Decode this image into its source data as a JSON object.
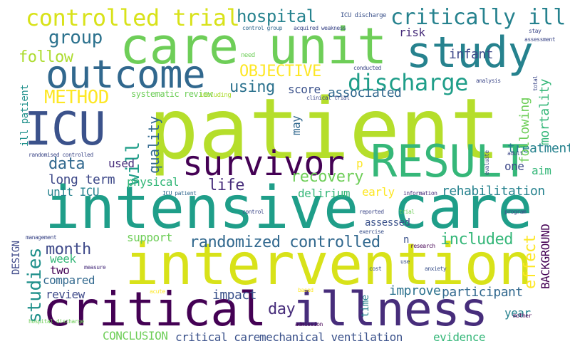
{
  "words": [
    {
      "text": "patient",
      "color": "#b5de2b"
    },
    {
      "text": "intensive care",
      "color": "#1f9e89"
    },
    {
      "text": "intervention",
      "color": "#d8e219"
    },
    {
      "text": "critical",
      "color": "#440154"
    },
    {
      "text": "illness",
      "color": "#472d7b"
    },
    {
      "text": "care unit",
      "color": "#6ece58"
    },
    {
      "text": "study",
      "color": "#26828e"
    },
    {
      "text": "outcome",
      "color": "#31688e"
    },
    {
      "text": "ICU",
      "color": "#3b528b"
    },
    {
      "text": "RESULT",
      "color": "#35b779"
    },
    {
      "text": "survivor",
      "color": "#440154"
    },
    {
      "text": "controlled trial",
      "color": "#d8e219"
    },
    {
      "text": "critically ill",
      "color": "#26828e"
    },
    {
      "text": "discharge",
      "color": "#1f9e89"
    },
    {
      "text": "hospital",
      "color": "#26828e"
    },
    {
      "text": "group",
      "color": "#2c728e"
    },
    {
      "text": "METHOD",
      "color": "#fde725"
    },
    {
      "text": "OBJECTIVE",
      "color": "#fde725"
    },
    {
      "text": "follow",
      "color": "#addc30"
    },
    {
      "text": "using",
      "color": "#2c728e"
    },
    {
      "text": "score",
      "color": "#3b528b"
    },
    {
      "text": "associated",
      "color": "#31688e"
    },
    {
      "text": "risk",
      "color": "#472d7b"
    },
    {
      "text": "infant",
      "color": "#3e4989"
    },
    {
      "text": "treatment",
      "color": "#26828e"
    },
    {
      "text": "mortality",
      "color": "#35b779"
    },
    {
      "text": "following",
      "color": "#6ece58"
    },
    {
      "text": "will",
      "color": "#1f9e89"
    },
    {
      "text": "quality",
      "color": "#31688e"
    },
    {
      "text": "data",
      "color": "#31688e"
    },
    {
      "text": "long term",
      "color": "#3e4989"
    },
    {
      "text": "recovery",
      "color": "#6ece58"
    },
    {
      "text": "life",
      "color": "#472d7b"
    },
    {
      "text": "physical",
      "color": "#35b779"
    },
    {
      "text": "delirium",
      "color": "#35b779"
    },
    {
      "text": "rehabilitation",
      "color": "#26828e"
    },
    {
      "text": "early",
      "color": "#fde725"
    },
    {
      "text": "unit ICU",
      "color": "#26828e"
    },
    {
      "text": "ill patient",
      "color": "#21918c"
    },
    {
      "text": "may",
      "color": "#31688e"
    },
    {
      "text": "used",
      "color": "#472d7b"
    },
    {
      "text": "p",
      "color": "#fde725"
    },
    {
      "text": "one",
      "color": "#3e4989"
    },
    {
      "text": "aim",
      "color": "#35b779"
    },
    {
      "text": "month",
      "color": "#3e4989"
    },
    {
      "text": "randomized controlled",
      "color": "#31688e"
    },
    {
      "text": "included",
      "color": "#35b779"
    },
    {
      "text": "support",
      "color": "#6ece58"
    },
    {
      "text": "week",
      "color": "#35b779"
    },
    {
      "text": "two",
      "color": "#440154"
    },
    {
      "text": "compared",
      "color": "#31688e"
    },
    {
      "text": "assessed",
      "color": "#3b528b"
    },
    {
      "text": "effect",
      "color": "#fde725"
    },
    {
      "text": "BACKGROUND",
      "color": "#440154"
    },
    {
      "text": "studies",
      "color": "#21918c"
    },
    {
      "text": "review",
      "color": "#3e4989"
    },
    {
      "text": "impact",
      "color": "#3b528b"
    },
    {
      "text": "improve",
      "color": "#2c728e"
    },
    {
      "text": "participant",
      "color": "#31688e"
    },
    {
      "text": "day",
      "color": "#472d7b"
    },
    {
      "text": "year",
      "color": "#26828e"
    },
    {
      "text": "CONCLUSION",
      "color": "#6ece58"
    },
    {
      "text": "critical care",
      "color": "#3b528b"
    },
    {
      "text": "mechanical ventilation",
      "color": "#3b528b"
    },
    {
      "text": "evidence",
      "color": "#35b779"
    },
    {
      "text": "DESIGN",
      "color": "#3e4989"
    },
    {
      "text": "n",
      "color": "#3b528b"
    },
    {
      "text": "time",
      "color": "#26828e"
    },
    {
      "text": "systematic review",
      "color": "#6ece58"
    },
    {
      "text": "ICU discharge",
      "color": "#3b528b"
    },
    {
      "text": "control group",
      "color": "#31688e"
    },
    {
      "text": "acquired weakness",
      "color": "#3e4989"
    },
    {
      "text": "need",
      "color": "#6ece58"
    },
    {
      "text": "conducted",
      "color": "#3e4989"
    },
    {
      "text": "clinical trial",
      "color": "#3e4989"
    },
    {
      "text": "including",
      "color": "#addc30"
    },
    {
      "text": "randomised controlled",
      "color": "#3e4989"
    },
    {
      "text": "ICU patient",
      "color": "#31688e"
    },
    {
      "text": "information",
      "color": "#472d7b"
    },
    {
      "text": "control",
      "color": "#3e4989"
    },
    {
      "text": "reported",
      "color": "#3e4989"
    },
    {
      "text": "trial",
      "color": "#6ece58"
    },
    {
      "text": "program",
      "color": "#3e4989"
    },
    {
      "text": "exercise",
      "color": "#3b528b"
    },
    {
      "text": "research",
      "color": "#440154"
    },
    {
      "text": "management",
      "color": "#3e4989"
    },
    {
      "text": "measure",
      "color": "#472d7b"
    },
    {
      "text": "use",
      "color": "#3b528b"
    },
    {
      "text": "anxiety",
      "color": "#3b528b"
    },
    {
      "text": "cost",
      "color": "#3b528b"
    },
    {
      "text": "acute",
      "color": "#fde725"
    },
    {
      "text": "based",
      "color": "#fde725"
    },
    {
      "text": "admission",
      "color": "#440154"
    },
    {
      "text": "mother",
      "color": "#440154"
    },
    {
      "text": "hospital discharge",
      "color": "#6ece58"
    },
    {
      "text": "stay",
      "color": "#3e4989"
    },
    {
      "text": "assessment",
      "color": "#3e4989"
    },
    {
      "text": "analysis",
      "color": "#3e4989"
    },
    {
      "text": "total",
      "color": "#3e4989"
    },
    {
      "text": "evaluate",
      "color": "#3e4989"
    },
    {
      "text": "adult",
      "color": "#3e4989"
    }
  ]
}
